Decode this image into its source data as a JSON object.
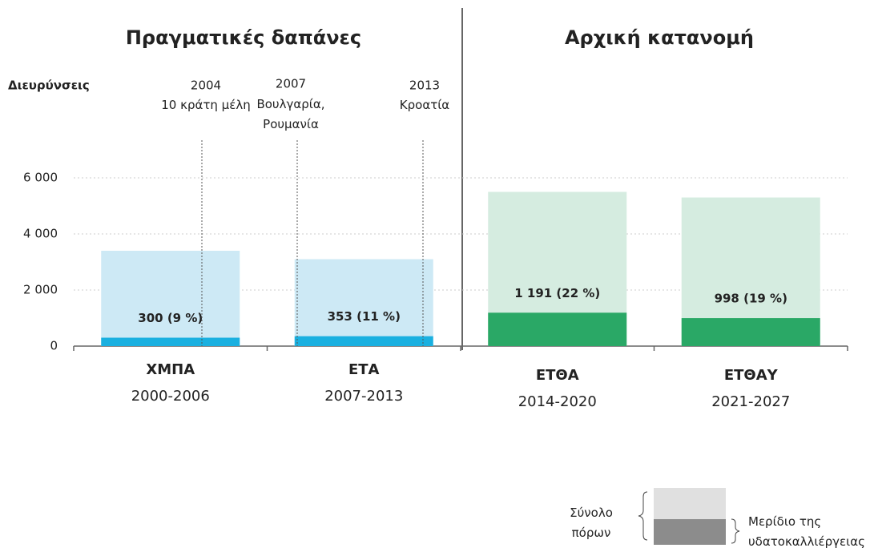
{
  "chart_data": {
    "type": "bar",
    "sections": [
      "Πραγματικές δαπάνες",
      "Αρχική κατανομή"
    ],
    "categories": [
      "ΧΜΠΑ",
      "ΕΤΑ",
      "ΕΤΘΑ",
      "ΕΤΘΑΥ"
    ],
    "periods": [
      "2000-2006",
      "2007-2013",
      "2014-2020",
      "2021-2027"
    ],
    "series": [
      {
        "name": "Σύνολο πόρων",
        "color": "#d9d9d9",
        "colors": [
          "#cde9f5",
          "#cde9f5",
          "#d5ece0",
          "#d5ece0"
        ],
        "values": [
          3400,
          3100,
          5500,
          5300
        ]
      },
      {
        "name": "Μερίδιο της υδατοκαλλιέργειας",
        "color": "#8c8c8c",
        "colors": [
          "#1ab0e0",
          "#1ab0e0",
          "#2aa866",
          "#2aa866"
        ],
        "values": [
          300,
          353,
          1191,
          998
        ],
        "value_labels": [
          "300 (9 %)",
          "353 (11 %)",
          "1 191 (22 %)",
          "998 (19 %)"
        ]
      }
    ],
    "ylim": [
      0,
      6000
    ],
    "yticks": [
      0,
      {
        "value": 2000,
        "label": "2 000"
      },
      {
        "value": 4000,
        "label": "4 000"
      },
      {
        "value": 6000,
        "label": "6 000"
      }
    ],
    "grid": true,
    "enlargements": {
      "label": "Διευρύνσεις",
      "items": [
        {
          "year": "2004",
          "text": "10 κράτη μέλη"
        },
        {
          "year": "2007",
          "text": "Βουλγαρία, Ρουμανία"
        },
        {
          "year": "2013",
          "text": "Κροατία"
        }
      ]
    }
  }
}
